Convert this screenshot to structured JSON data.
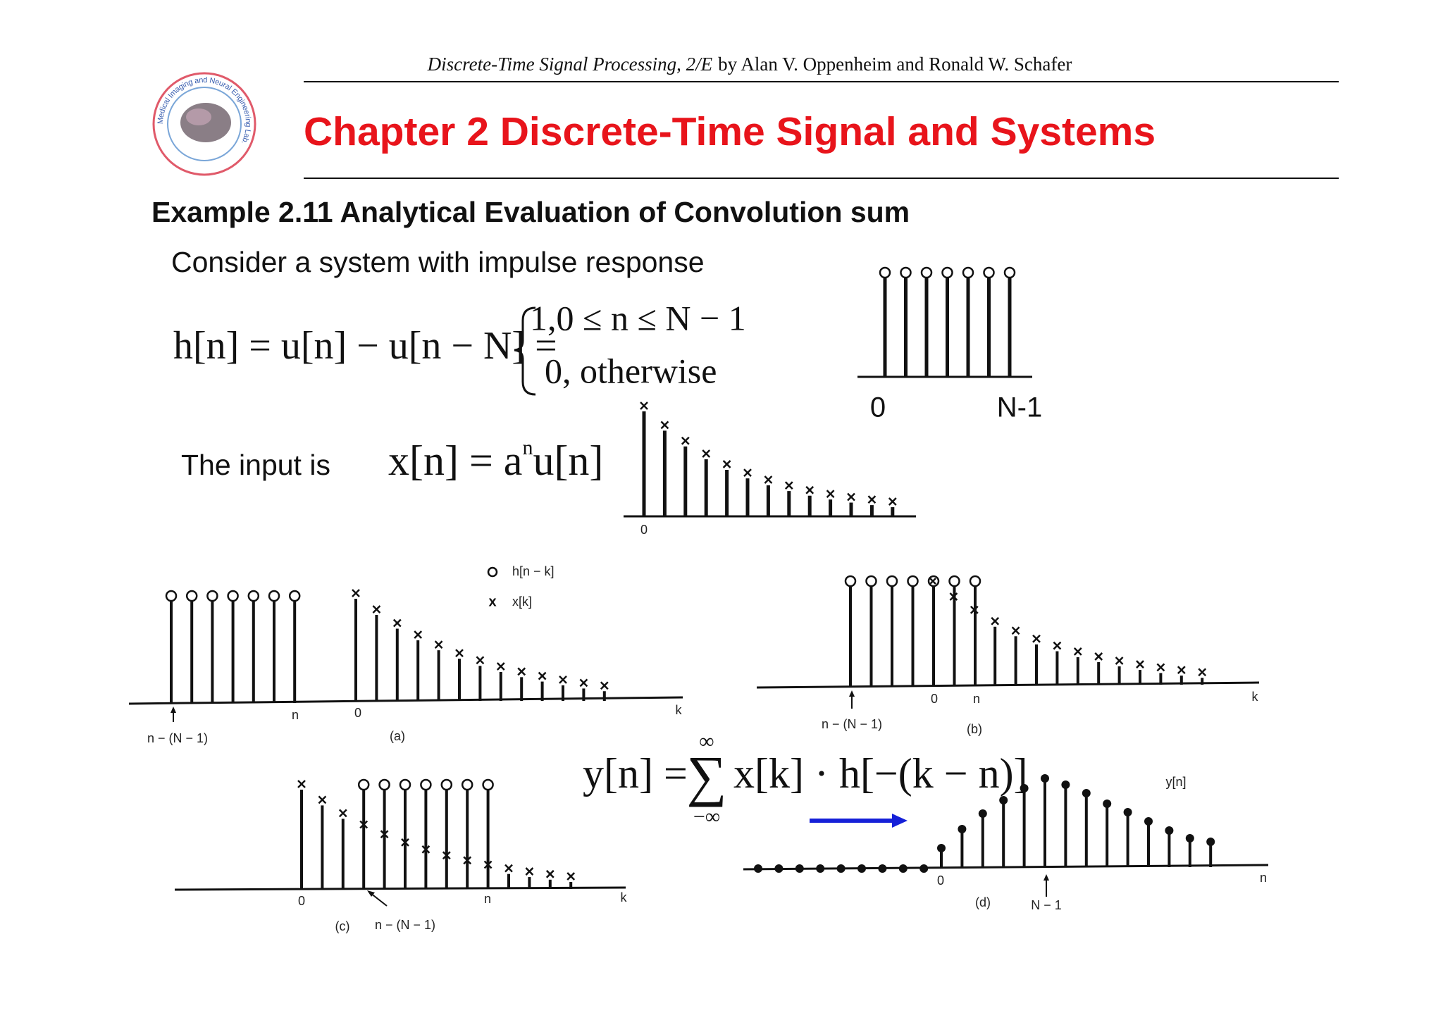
{
  "header": {
    "book_title": "Discrete-Time Signal Processing, 2/E",
    "authors": "by Alan V. Oppenheim and Ronald W. Schafer"
  },
  "logo_text": "Medical Imaging and Neural Engineering Lab.",
  "title": "Chapter 2 Discrete-Time Signal and Systems",
  "example": {
    "heading": "Example 2.11 Analytical Evaluation of Convolution sum",
    "intro": "Consider a system with impulse response",
    "impulse_response": {
      "lhs": "h[n] = u[n] − u[n − N] =",
      "case1": "1,0 ≤ n ≤ N − 1",
      "case2": "0, otherwise"
    },
    "input_label": "The input is",
    "input_eq": {
      "base": "x[n] = a",
      "exponent": "n",
      "rest": "u[n]"
    }
  },
  "plots": {
    "h": {
      "start_label": "0",
      "end_label": "N-1"
    },
    "x": {
      "start_label": "0"
    }
  },
  "figures": {
    "legend": {
      "circle_label": "h[n − k]",
      "cross_label": "x[k]"
    },
    "a": {
      "left_label": "n − (N − 1)",
      "n_label": "n",
      "zero_label": "0",
      "k_label": "k",
      "caption": "(a)"
    },
    "b": {
      "left_label": "n − (N − 1)",
      "zero_label": "0",
      "n_label": "n",
      "k_label": "k",
      "caption": "(b)"
    },
    "c": {
      "zero_label": "0",
      "n_label": "n",
      "k_label": "k",
      "caption": "(c)",
      "arrow_label": "n − (N − 1)"
    },
    "d": {
      "zero_label": "0",
      "arrow_label": "N − 1",
      "n_label": "n",
      "caption": "(d)",
      "title": "y[n]"
    }
  },
  "convolution": {
    "lhs": "y[n] =",
    "sum": "∑",
    "upper": "∞",
    "lower": "−∞",
    "rhs": "x[k] · h[−(k − n)]"
  }
}
